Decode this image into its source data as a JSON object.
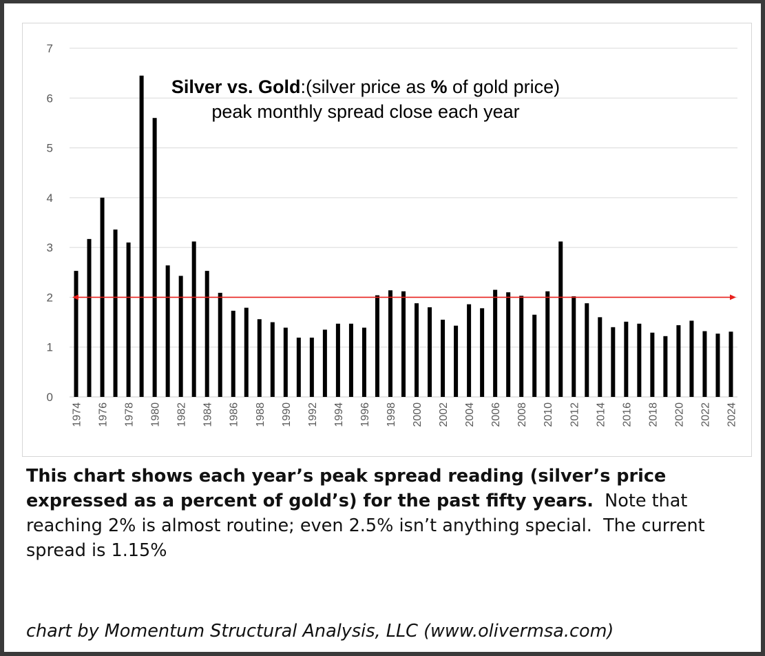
{
  "chart_data": {
    "type": "bar",
    "title_bold": "Silver vs. Gold",
    "title_rest_1": ":(silver price as ",
    "title_percent": "%",
    "title_rest_2": " of gold price)",
    "subtitle": "peak monthly spread close each year",
    "categories": [
      "1974",
      "1975",
      "1976",
      "1977",
      "1978",
      "1979",
      "1980",
      "1981",
      "1982",
      "1983",
      "1984",
      "1985",
      "1986",
      "1987",
      "1988",
      "1989",
      "1990",
      "1991",
      "1992",
      "1993",
      "1994",
      "1995",
      "1996",
      "1997",
      "1998",
      "1999",
      "2000",
      "2001",
      "2002",
      "2003",
      "2004",
      "2005",
      "2006",
      "2007",
      "2008",
      "2009",
      "2010",
      "2011",
      "2012",
      "2013",
      "2014",
      "2015",
      "2016",
      "2017",
      "2018",
      "2019",
      "2020",
      "2021",
      "2022",
      "2023",
      "2024"
    ],
    "values": [
      2.53,
      3.17,
      4.0,
      3.36,
      3.1,
      6.45,
      5.6,
      2.64,
      2.43,
      3.12,
      2.53,
      2.09,
      1.73,
      1.79,
      1.56,
      1.5,
      1.39,
      1.19,
      1.19,
      1.35,
      1.47,
      1.47,
      1.39,
      2.04,
      2.14,
      2.12,
      1.88,
      1.8,
      1.55,
      1.43,
      1.86,
      1.78,
      2.15,
      2.1,
      2.03,
      1.65,
      2.12,
      3.12,
      2.02,
      1.88,
      1.6,
      1.4,
      1.51,
      1.47,
      1.29,
      1.22,
      1.44,
      1.53,
      1.32,
      1.27,
      1.31
    ],
    "x_tick_labels": [
      "1974",
      "1976",
      "1978",
      "1980",
      "1982",
      "1984",
      "1986",
      "1988",
      "1990",
      "1992",
      "1994",
      "1996",
      "1998",
      "2000",
      "2002",
      "2004",
      "2006",
      "2008",
      "2010",
      "2012",
      "2014",
      "2016",
      "2018",
      "2020",
      "2022",
      "2024"
    ],
    "y_ticks": [
      "0",
      "1",
      "2",
      "3",
      "4",
      "5",
      "6",
      "7"
    ],
    "ylim": [
      0,
      7
    ],
    "grid": true,
    "reference_line": {
      "value": 2,
      "color": "#e8201c",
      "style": "double-arrow"
    },
    "bar_color": "#000000",
    "xlabel": "",
    "ylabel": ""
  },
  "caption": {
    "bold_text": "This chart shows each year’s peak spread reading (silver’s price expressed as a percent of gold’s) for the past fifty years.",
    "normal_text": "  Note that reaching 2% is almost routine; even 2.5% isn’t anything special.  The current spread is 1.15%"
  },
  "credit": "chart by Momentum Structural Analysis, LLC  (www.olivermsa.com)"
}
